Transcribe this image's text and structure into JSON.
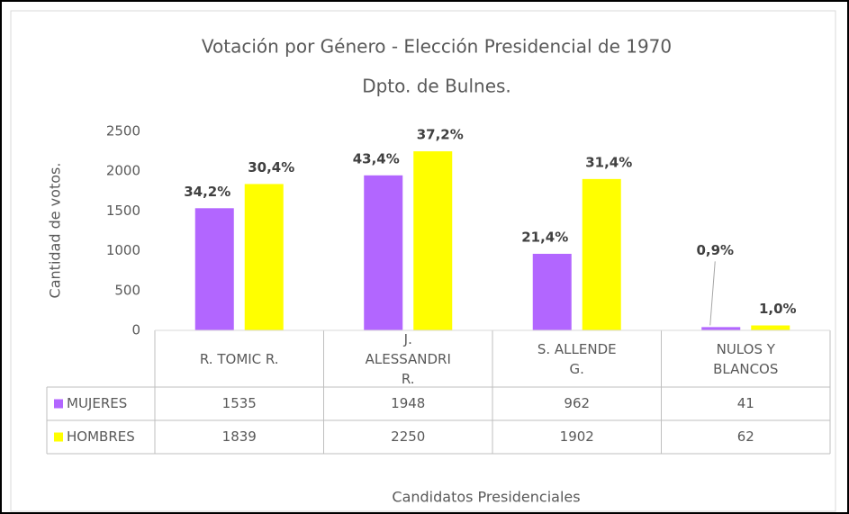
{
  "chart_data": {
    "type": "bar",
    "title": "Votación por Género - Elección Presidencial de 1970",
    "subtitle": "Dpto. de Bulnes.",
    "y_label": "Cantidad de votos.",
    "x_label": "Candidatos Presidenciales",
    "categories": [
      "R. TOMIC R.",
      "J. ALESSANDRI R.",
      "S. ALLENDE G.",
      "NULOS Y BLANCOS"
    ],
    "series": [
      {
        "name": "MUJERES",
        "color": "#b266ff",
        "values": [
          1535,
          1948,
          962,
          41
        ],
        "data_labels": [
          "34,2%",
          "43,4%",
          "21,4%",
          "0,9%"
        ]
      },
      {
        "name": "HOMBRES",
        "color": "#ffff00",
        "values": [
          1839,
          2250,
          1902,
          62
        ],
        "data_labels": [
          "30,4%",
          "37,2%",
          "31,4%",
          "1,0%"
        ]
      }
    ],
    "ylim": [
      0,
      2500
    ],
    "yticks": [
      0,
      500,
      1000,
      1500,
      2000,
      2500
    ],
    "grid": false,
    "data_table": true
  }
}
